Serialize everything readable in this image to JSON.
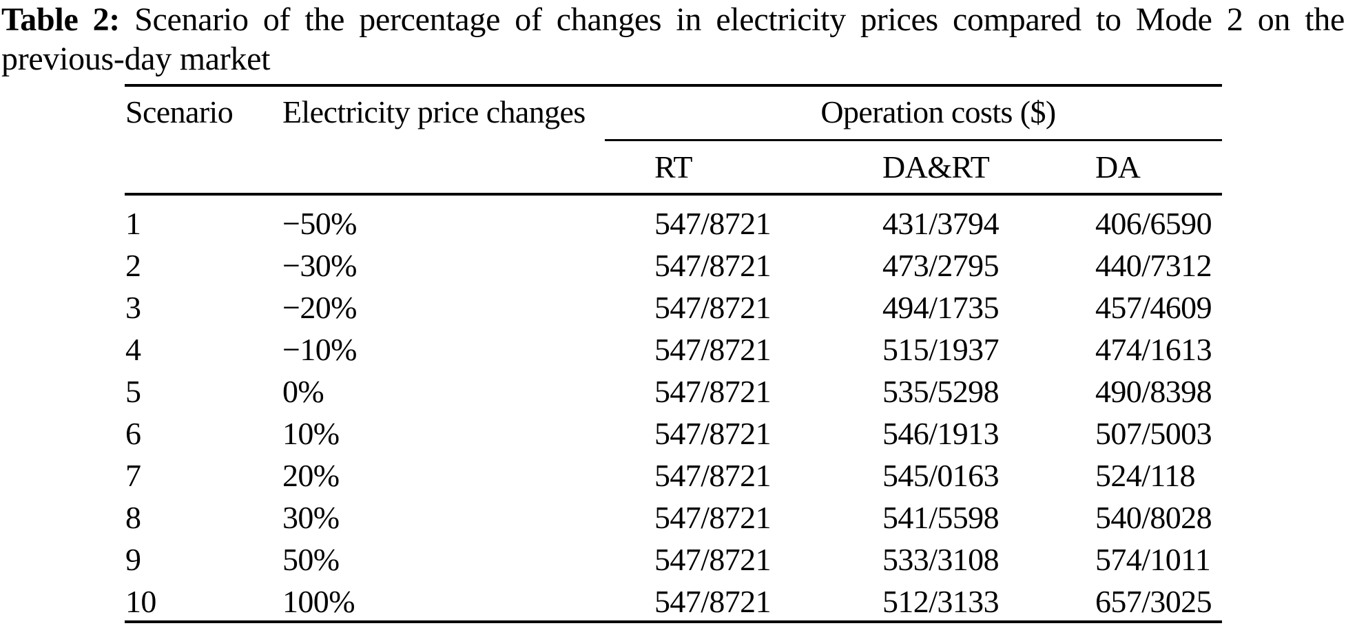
{
  "title": {
    "label": "Table 2:",
    "line1_rest": "Scenario of the percentage of changes in electricity prices compared to Mode 2 on the",
    "line2": "previous-day market"
  },
  "table": {
    "headers": {
      "scenario": "Scenario",
      "price_changes": "Electricity price changes",
      "operation_costs": "Operation costs ($)",
      "rt": "RT",
      "da_rt": "DA&RT",
      "da": "DA"
    },
    "rows": [
      {
        "scenario": "1",
        "change": "−50%",
        "rt": "547/8721",
        "da_rt": "431/3794",
        "da": "406/6590"
      },
      {
        "scenario": "2",
        "change": "−30%",
        "rt": "547/8721",
        "da_rt": "473/2795",
        "da": "440/7312"
      },
      {
        "scenario": "3",
        "change": "−20%",
        "rt": "547/8721",
        "da_rt": "494/1735",
        "da": "457/4609"
      },
      {
        "scenario": "4",
        "change": "−10%",
        "rt": "547/8721",
        "da_rt": "515/1937",
        "da": "474/1613"
      },
      {
        "scenario": "5",
        "change": "0%",
        "rt": "547/8721",
        "da_rt": "535/5298",
        "da": "490/8398"
      },
      {
        "scenario": "6",
        "change": "10%",
        "rt": "547/8721",
        "da_rt": "546/1913",
        "da": "507/5003"
      },
      {
        "scenario": "7",
        "change": "20%",
        "rt": "547/8721",
        "da_rt": "545/0163",
        "da": "524/118"
      },
      {
        "scenario": "8",
        "change": "30%",
        "rt": "547/8721",
        "da_rt": "541/5598",
        "da": "540/8028"
      },
      {
        "scenario": "9",
        "change": "50%",
        "rt": "547/8721",
        "da_rt": "533/3108",
        "da": "574/1011"
      },
      {
        "scenario": "10",
        "change": "100%",
        "rt": "547/8721",
        "da_rt": "512/3133",
        "da": "657/3025"
      }
    ],
    "colors": {
      "text": "#000000",
      "background": "#ffffff",
      "rule": "#000000"
    }
  }
}
